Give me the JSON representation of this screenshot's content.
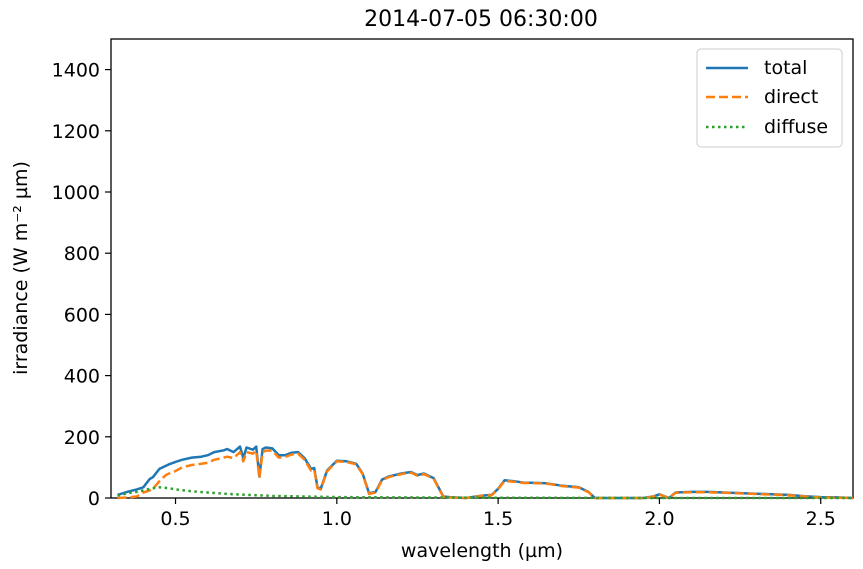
{
  "chart_data": {
    "type": "line",
    "title": "2014-07-05 06:30:00",
    "xlabel": "wavelength (µm)",
    "ylabel": "irradiance (W m⁻² µm)",
    "xlim": [
      0.3,
      2.6
    ],
    "ylim": [
      0,
      1500
    ],
    "xticks": [
      0.5,
      1.0,
      1.5,
      2.0,
      2.5
    ],
    "xtick_labels": [
      "0.5",
      "1.0",
      "1.5",
      "2.0",
      "2.5"
    ],
    "yticks": [
      0,
      200,
      400,
      600,
      800,
      1000,
      1200,
      1400
    ],
    "ytick_labels": [
      "0",
      "200",
      "400",
      "600",
      "800",
      "1000",
      "1200",
      "1400"
    ],
    "grid": false,
    "legend_position": "top-right",
    "series": [
      {
        "name": "total",
        "color": "#1f77b4",
        "style": "solid",
        "x": [
          0.32,
          0.35,
          0.38,
          0.4,
          0.42,
          0.43,
          0.45,
          0.47,
          0.48,
          0.5,
          0.52,
          0.55,
          0.58,
          0.6,
          0.62,
          0.65,
          0.66,
          0.68,
          0.7,
          0.71,
          0.72,
          0.74,
          0.75,
          0.76,
          0.77,
          0.78,
          0.8,
          0.82,
          0.84,
          0.86,
          0.88,
          0.9,
          0.92,
          0.93,
          0.94,
          0.95,
          0.97,
          1.0,
          1.03,
          1.06,
          1.08,
          1.1,
          1.12,
          1.14,
          1.16,
          1.2,
          1.23,
          1.25,
          1.27,
          1.3,
          1.33,
          1.35,
          1.4,
          1.45,
          1.48,
          1.5,
          1.52,
          1.55,
          1.58,
          1.6,
          1.65,
          1.7,
          1.75,
          1.78,
          1.8,
          1.85,
          1.9,
          1.95,
          1.98,
          2.0,
          2.03,
          2.05,
          2.1,
          2.15,
          2.2,
          2.25,
          2.3,
          2.35,
          2.4,
          2.45,
          2.5,
          2.55,
          2.6
        ],
        "values": [
          10,
          20,
          28,
          35,
          62,
          68,
          95,
          105,
          110,
          118,
          125,
          132,
          135,
          140,
          150,
          156,
          160,
          150,
          168,
          130,
          165,
          158,
          168,
          70,
          160,
          165,
          162,
          140,
          140,
          148,
          150,
          130,
          95,
          98,
          35,
          30,
          90,
          122,
          120,
          112,
          80,
          15,
          20,
          60,
          70,
          80,
          85,
          75,
          80,
          65,
          5,
          3,
          0,
          8,
          10,
          30,
          58,
          55,
          50,
          50,
          48,
          40,
          35,
          20,
          0,
          0,
          0,
          0,
          5,
          12,
          0,
          18,
          20,
          20,
          18,
          16,
          14,
          12,
          10,
          6,
          3,
          2,
          0
        ]
      },
      {
        "name": "direct",
        "color": "#ff7f0e",
        "style": "dashed",
        "x": [
          0.32,
          0.35,
          0.38,
          0.4,
          0.42,
          0.43,
          0.45,
          0.47,
          0.48,
          0.5,
          0.52,
          0.55,
          0.58,
          0.6,
          0.62,
          0.65,
          0.66,
          0.68,
          0.7,
          0.71,
          0.72,
          0.74,
          0.75,
          0.76,
          0.77,
          0.78,
          0.8,
          0.82,
          0.84,
          0.86,
          0.88,
          0.9,
          0.92,
          0.93,
          0.94,
          0.95,
          0.97,
          1.0,
          1.03,
          1.06,
          1.08,
          1.1,
          1.12,
          1.14,
          1.16,
          1.2,
          1.23,
          1.25,
          1.27,
          1.3,
          1.33,
          1.35,
          1.4,
          1.45,
          1.48,
          1.5,
          1.52,
          1.55,
          1.58,
          1.6,
          1.65,
          1.7,
          1.75,
          1.78,
          1.8,
          1.85,
          1.9,
          1.95,
          1.98,
          2.0,
          2.03,
          2.05,
          2.1,
          2.15,
          2.2,
          2.25,
          2.3,
          2.35,
          2.4,
          2.45,
          2.5,
          2.55,
          2.6
        ],
        "values": [
          0,
          2,
          5,
          18,
          25,
          30,
          55,
          75,
          80,
          88,
          100,
          108,
          112,
          115,
          125,
          132,
          135,
          130,
          150,
          120,
          150,
          145,
          155,
          65,
          150,
          155,
          155,
          132,
          134,
          142,
          145,
          125,
          90,
          93,
          32,
          28,
          87,
          120,
          118,
          110,
          78,
          13,
          18,
          58,
          68,
          78,
          83,
          73,
          78,
          63,
          4,
          2,
          0,
          7,
          9,
          29,
          56,
          53,
          49,
          49,
          47,
          39,
          34,
          19,
          0,
          0,
          0,
          0,
          4,
          11,
          0,
          17,
          19,
          19,
          17,
          15,
          13,
          11,
          9,
          5,
          2,
          1,
          0
        ]
      },
      {
        "name": "diffuse",
        "color": "#2ca02c",
        "style": "dotted",
        "x": [
          0.32,
          0.35,
          0.38,
          0.4,
          0.42,
          0.45,
          0.48,
          0.5,
          0.55,
          0.6,
          0.65,
          0.7,
          0.75,
          0.8,
          0.9,
          1.0,
          1.2,
          1.5,
          2.0,
          2.6
        ],
        "values": [
          8,
          15,
          20,
          25,
          30,
          35,
          32,
          28,
          22,
          18,
          14,
          11,
          9,
          7,
          5,
          3,
          2,
          1,
          0,
          0
        ]
      }
    ]
  }
}
